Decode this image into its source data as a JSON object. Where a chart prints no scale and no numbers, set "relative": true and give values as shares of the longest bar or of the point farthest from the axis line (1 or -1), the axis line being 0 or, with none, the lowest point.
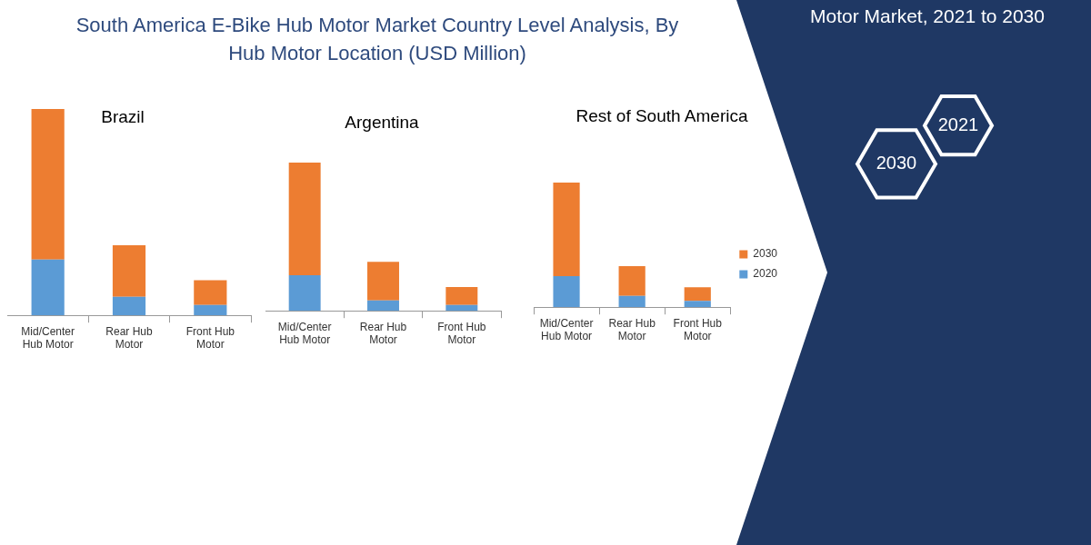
{
  "chart_data": [
    {
      "type": "other",
      "title": "South America E-Bike Hub Motor Market Country Level Analysis, By Hub Motor Location (USD Million)"
    },
    {
      "type": "bar",
      "title": "Brazil",
      "categories": [
        "Mid/Center Hub Motor",
        "Rear Hub Motor",
        "Front Hub Motor"
      ],
      "stacked": true,
      "relative": true,
      "legend": false,
      "series": [
        {
          "color": "#5b9bd5",
          "values": [
            0.27,
            0.09,
            0.05
          ]
        },
        {
          "color": "#ed7d31",
          "values": [
            0.73,
            0.25,
            0.12
          ]
        }
      ]
    },
    {
      "type": "bar",
      "title": "Argentina",
      "categories": [
        "Mid/Center Hub Motor",
        "Rear Hub Motor",
        "Front Hub Motor"
      ],
      "stacked": true,
      "relative": true,
      "legend": false,
      "series": [
        {
          "color": "#5b9bd5",
          "values": [
            0.24,
            0.07,
            0.04
          ]
        },
        {
          "color": "#ed7d31",
          "values": [
            0.76,
            0.26,
            0.12
          ]
        }
      ]
    },
    {
      "type": "bar",
      "title": "Rest of South America",
      "categories": [
        "Mid/Center Hub Motor",
        "Rear Hub Motor",
        "Front Hub Motor"
      ],
      "stacked": true,
      "relative": true,
      "legend": "right",
      "series": [
        {
          "name": "2020",
          "color": "#5b9bd5",
          "values": [
            0.25,
            0.09,
            0.05
          ]
        },
        {
          "name": "2030",
          "color": "#ed7d31",
          "values": [
            0.75,
            0.24,
            0.11
          ]
        }
      ]
    },
    {
      "type": "other",
      "title": "Motor Market, 2021 to 2030",
      "annotations": [
        "2021",
        "2030"
      ]
    }
  ]
}
